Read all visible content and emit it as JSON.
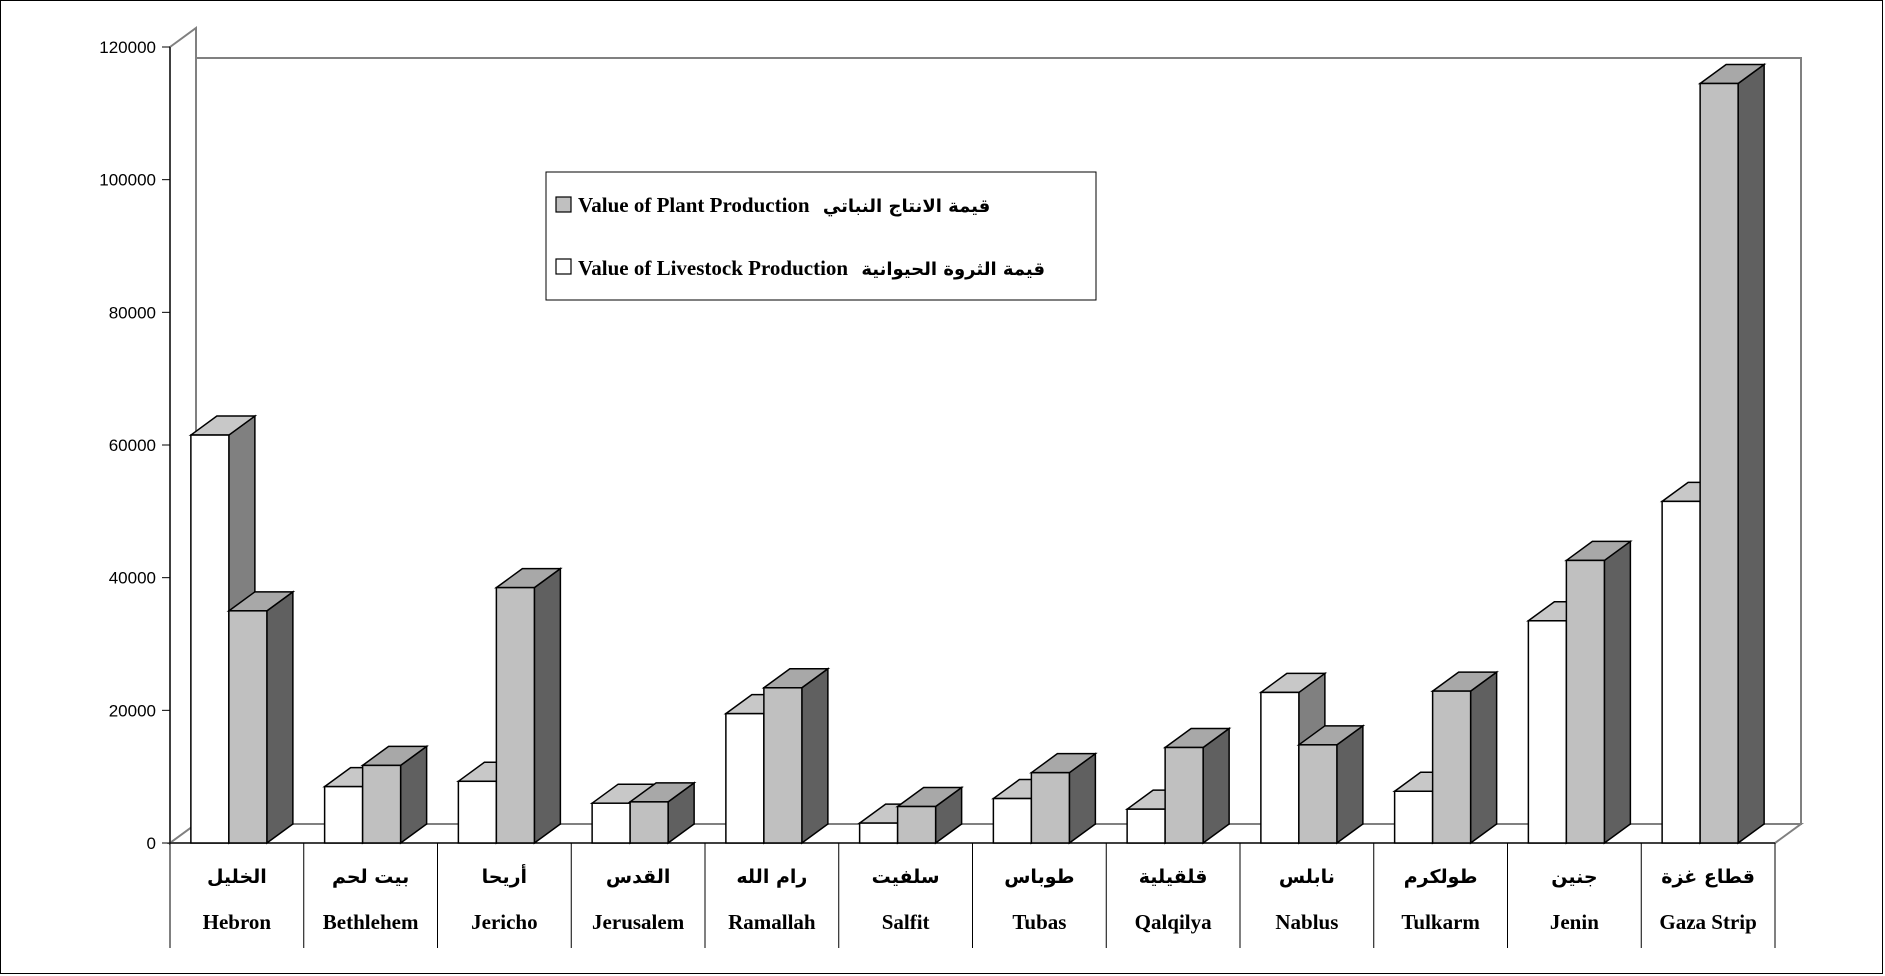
{
  "chart_data": {
    "type": "bar",
    "title": "",
    "xlabel": "",
    "ylabel": "",
    "ylim": [
      0,
      120000
    ],
    "yticks": [
      0,
      20000,
      40000,
      60000,
      80000,
      100000,
      120000
    ],
    "grid": false,
    "legend_placement": "top-center",
    "categories": [
      {
        "ar": "الخليل",
        "en": "Hebron"
      },
      {
        "ar": "بيت لحم",
        "en": "Bethlehem"
      },
      {
        "ar": "أريحا",
        "en": "Jericho"
      },
      {
        "ar": "القدس",
        "en": "Jerusalem"
      },
      {
        "ar": "رام الله",
        "en": "Ramallah"
      },
      {
        "ar": "سلفيت",
        "en": "Salfit"
      },
      {
        "ar": "طوباس",
        "en": "Tubas"
      },
      {
        "ar": "قلقيلية",
        "en": "Qalqilya"
      },
      {
        "ar": "نابلس",
        "en": "Nablus"
      },
      {
        "ar": "طولكرم",
        "en": "Tulkarm"
      },
      {
        "ar": "جنين",
        "en": "Jenin"
      },
      {
        "ar": "قطاع غزة",
        "en": "Gaza Strip"
      }
    ],
    "series": [
      {
        "name": "Value of Livestock Production",
        "name_ar": "قيمة الثروة الحيوانية",
        "color": "#ffffff",
        "values": [
          61500,
          8500,
          9300,
          6000,
          19500,
          3000,
          6700,
          5100,
          22700,
          7800,
          33500,
          51500
        ]
      },
      {
        "name": "Value of Plant Production",
        "name_ar": "قيمة الانتاج النباتي",
        "color": "#c0c0c0",
        "values": [
          35000,
          11700,
          38500,
          6200,
          23400,
          5500,
          10600,
          14400,
          14800,
          22900,
          42600,
          114500
        ]
      }
    ]
  }
}
